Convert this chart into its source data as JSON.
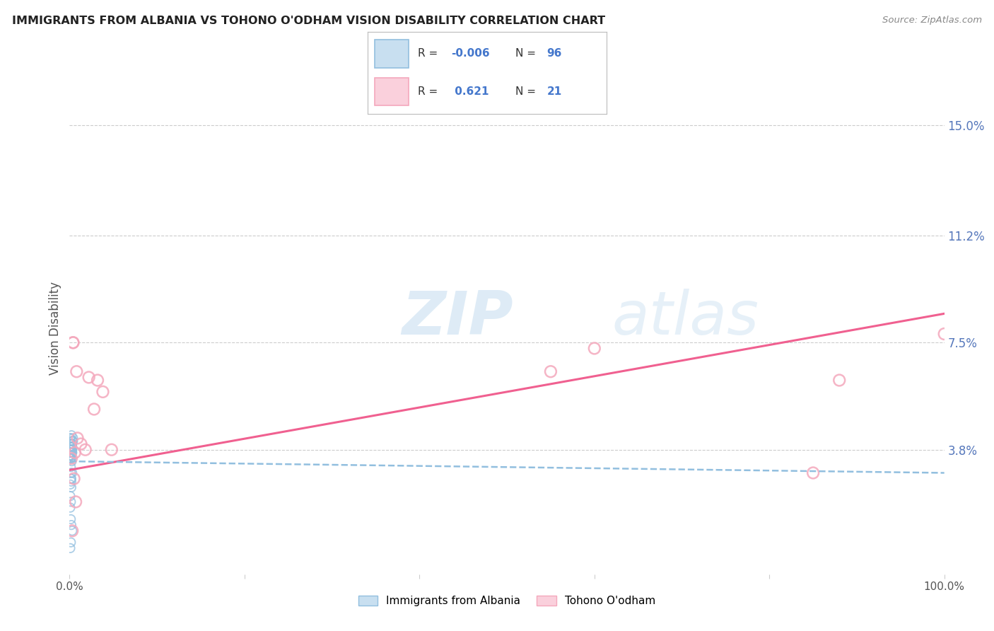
{
  "title": "IMMIGRANTS FROM ALBANIA VS TOHONO O'ODHAM VISION DISABILITY CORRELATION CHART",
  "source": "Source: ZipAtlas.com",
  "ylabel": "Vision Disability",
  "xlim": [
    0,
    1.0
  ],
  "ylim": [
    -0.005,
    0.165
  ],
  "ytick_vals": [
    0.038,
    0.075,
    0.112,
    0.15
  ],
  "ytick_labels": [
    "3.8%",
    "7.5%",
    "11.2%",
    "15.0%"
  ],
  "blue_R": "-0.006",
  "blue_N": "96",
  "pink_R": "0.621",
  "pink_N": "21",
  "blue_color": "#92bfdf",
  "pink_color": "#f4a8bc",
  "blue_line_color": "#92bfdf",
  "pink_line_color": "#f06090",
  "watermark_zip": "ZIP",
  "watermark_atlas": "atlas",
  "background_color": "#ffffff",
  "grid_color": "#cccccc",
  "tick_color": "#5577bb",
  "label_color": "#555555",
  "blue_scatter_x": [
    0.0008,
    0.0015,
    0.002,
    0.0008,
    0.0012,
    0.003,
    0.0025,
    0.004,
    0.0018,
    0.0008,
    0.0022,
    0.0015,
    0.0009,
    0.003,
    0.0016,
    0.002,
    0.0007,
    0.004,
    0.0014,
    0.002,
    0.0008,
    0.0015,
    0.003,
    0.002,
    0.0007,
    0.0016,
    0.0022,
    0.0014,
    0.0008,
    0.002,
    0.003,
    0.0015,
    0.0008,
    0.002,
    0.0014,
    0.0008,
    0.0013,
    0.002,
    0.003,
    0.0015,
    0.0007,
    0.002,
    0.0015,
    0.003,
    0.0008,
    0.0014,
    0.002,
    0.0009,
    0.0015,
    0.003,
    0.002,
    0.0014,
    0.0008,
    0.0015,
    0.002,
    0.003,
    0.0015,
    0.0008,
    0.002,
    0.0015,
    0.0007,
    0.0014,
    0.002,
    0.003,
    0.0015,
    0.0008,
    0.002,
    0.0015,
    0.003,
    0.0008,
    0.0015,
    0.002,
    0.0008,
    0.0014,
    0.002,
    0.003,
    0.0008,
    0.0015,
    0.002,
    0.0008,
    0.0015,
    0.003,
    0.002,
    0.0008,
    0.0015,
    0.002,
    0.0014,
    0.0008,
    0.002,
    0.0015,
    0.0008,
    0.0014,
    0.002,
    0.003,
    0.0015,
    0.0008
  ],
  "blue_scatter_y": [
    0.04,
    0.038,
    0.036,
    0.042,
    0.039,
    0.037,
    0.034,
    0.041,
    0.035,
    0.04,
    0.043,
    0.038,
    0.037,
    0.04,
    0.039,
    0.038,
    0.036,
    0.042,
    0.037,
    0.039,
    0.035,
    0.04,
    0.041,
    0.038,
    0.036,
    0.039,
    0.037,
    0.04,
    0.042,
    0.038,
    0.039,
    0.037,
    0.036,
    0.04,
    0.038,
    0.039,
    0.037,
    0.04,
    0.041,
    0.038,
    0.036,
    0.039,
    0.04,
    0.038,
    0.037,
    0.039,
    0.04,
    0.036,
    0.038,
    0.041,
    0.039,
    0.037,
    0.04,
    0.038,
    0.039,
    0.037,
    0.04,
    0.036,
    0.039,
    0.038,
    0.035,
    0.039,
    0.04,
    0.038,
    0.037,
    0.039,
    0.038,
    0.037,
    0.04,
    0.036,
    0.038,
    0.039,
    0.04,
    0.037,
    0.038,
    0.039,
    0.036,
    0.04,
    0.038,
    0.035,
    0.028,
    0.03,
    0.025,
    0.022,
    0.02,
    0.027,
    0.032,
    0.026,
    0.028,
    0.03,
    0.018,
    0.014,
    0.012,
    0.01,
    0.006,
    0.004
  ],
  "pink_scatter_x": [
    0.004,
    0.008,
    0.022,
    0.028,
    0.038,
    0.048,
    0.032,
    0.55,
    0.6,
    0.85,
    0.88,
    1.0,
    0.018,
    0.013,
    0.004,
    0.006,
    0.009,
    0.002,
    0.005,
    0.007,
    0.003
  ],
  "pink_scatter_y": [
    0.075,
    0.065,
    0.063,
    0.052,
    0.058,
    0.038,
    0.062,
    0.065,
    0.073,
    0.03,
    0.062,
    0.078,
    0.038,
    0.04,
    0.075,
    0.037,
    0.042,
    0.035,
    0.028,
    0.02,
    0.01
  ],
  "pink_trendline_x": [
    0.0,
    1.0
  ],
  "pink_trendline_y": [
    0.031,
    0.085
  ],
  "blue_trendline_x": [
    0.0,
    1.0
  ],
  "blue_trendline_y": [
    0.034,
    0.03
  ]
}
